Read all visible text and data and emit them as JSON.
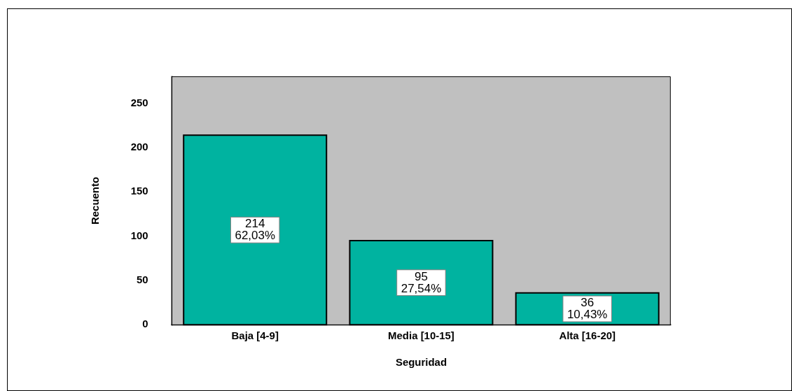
{
  "chart_data": {
    "type": "bar",
    "xlabel": "Seguridad",
    "ylabel": "Recuento",
    "categories": [
      "Baja [4-9]",
      "Media [10-15]",
      "Alta [16-20]"
    ],
    "values": [
      214,
      95,
      36
    ],
    "color": "#00b3a0",
    "value_labels": [
      "214\n62,03%",
      "95\n27,54%",
      "36\n10,43%"
    ],
    "ylim": [
      0,
      280
    ],
    "yticks": [
      0,
      50,
      100,
      150,
      200,
      250
    ]
  }
}
